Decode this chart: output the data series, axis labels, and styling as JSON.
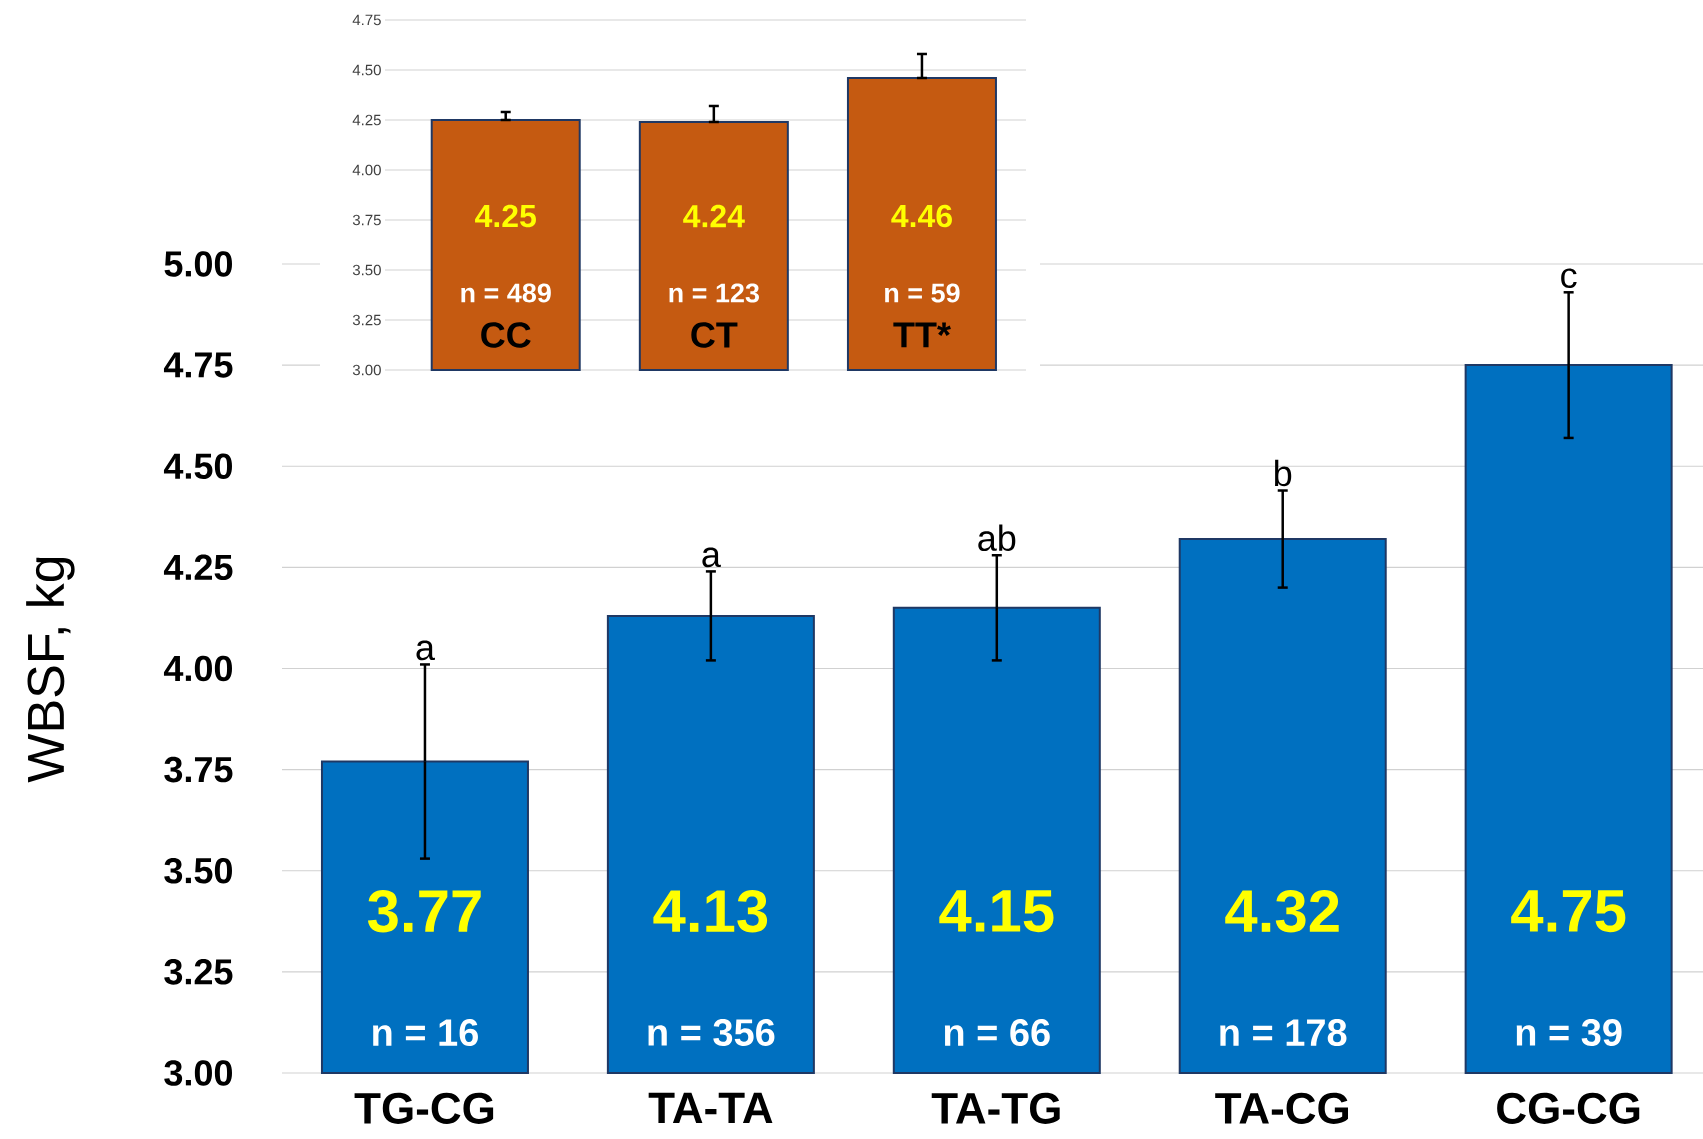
{
  "chart_data": [
    {
      "type": "bar",
      "ylabel": "WBSF, kg",
      "categories": [
        "TG-CG",
        "TA-TA",
        "TA-TG",
        "TA-CG",
        "CG-CG"
      ],
      "values": [
        3.77,
        4.13,
        4.15,
        4.32,
        4.75
      ],
      "errors": [
        [
          3.53,
          4.01
        ],
        [
          4.02,
          4.24
        ],
        [
          4.02,
          4.28
        ],
        [
          4.2,
          4.44
        ],
        [
          4.57,
          4.93
        ]
      ],
      "color": "#0070c0",
      "data_labels": true,
      "grid": "y",
      "ylim": [
        3,
        5
      ],
      "yticks": [
        {
          "value": 3,
          "label": "3.00"
        },
        {
          "value": 3.25,
          "label": "3.25"
        },
        {
          "value": 3.5,
          "label": "3.50"
        },
        {
          "value": 3.75,
          "label": "3.75"
        },
        {
          "value": 4,
          "label": "4.00"
        },
        {
          "value": 4.25,
          "label": "4.25"
        },
        {
          "value": 4.5,
          "label": "4.50"
        },
        {
          "value": 4.75,
          "label": "4.75"
        },
        {
          "value": 5,
          "label": "5.00"
        }
      ],
      "annotations": [
        {
          "text": "a",
          "x": "TG-CG",
          "y": 4.01
        },
        {
          "text": "a",
          "x": "TA-TA",
          "y": 4.24
        },
        {
          "text": "ab",
          "x": "TA-TG",
          "y": 4.28
        },
        {
          "text": "b",
          "x": "TA-CG",
          "y": 4.44
        },
        {
          "text": "c",
          "x": "CG-CG",
          "y": 4.93
        },
        "n = 16",
        "n = 356",
        "n = 66",
        "n = 178",
        "n = 39"
      ]
    },
    {
      "type": "bar",
      "categories": [
        "CC",
        "CT",
        "TT*"
      ],
      "values": [
        4.25,
        4.24,
        4.46
      ],
      "errors": [
        [
          4.25,
          4.29
        ],
        [
          4.24,
          4.32
        ],
        [
          4.46,
          4.58
        ]
      ],
      "color": "#c55a11",
      "data_labels": true,
      "grid": "y",
      "ylim": [
        3,
        4.75
      ],
      "yticks": [
        {
          "value": 3,
          "label": "3.00"
        },
        {
          "value": 3.25,
          "label": "3.25"
        },
        {
          "value": 3.5,
          "label": "3.50"
        },
        {
          "value": 3.75,
          "label": "3.75"
        },
        {
          "value": 4,
          "label": "4.00"
        },
        {
          "value": 4.25,
          "label": "4.25"
        },
        {
          "value": 4.5,
          "label": "4.50"
        },
        {
          "value": 4.75,
          "label": "4.75"
        }
      ],
      "annotations": [
        "n = 489",
        "n = 123",
        "n = 59"
      ]
    }
  ]
}
